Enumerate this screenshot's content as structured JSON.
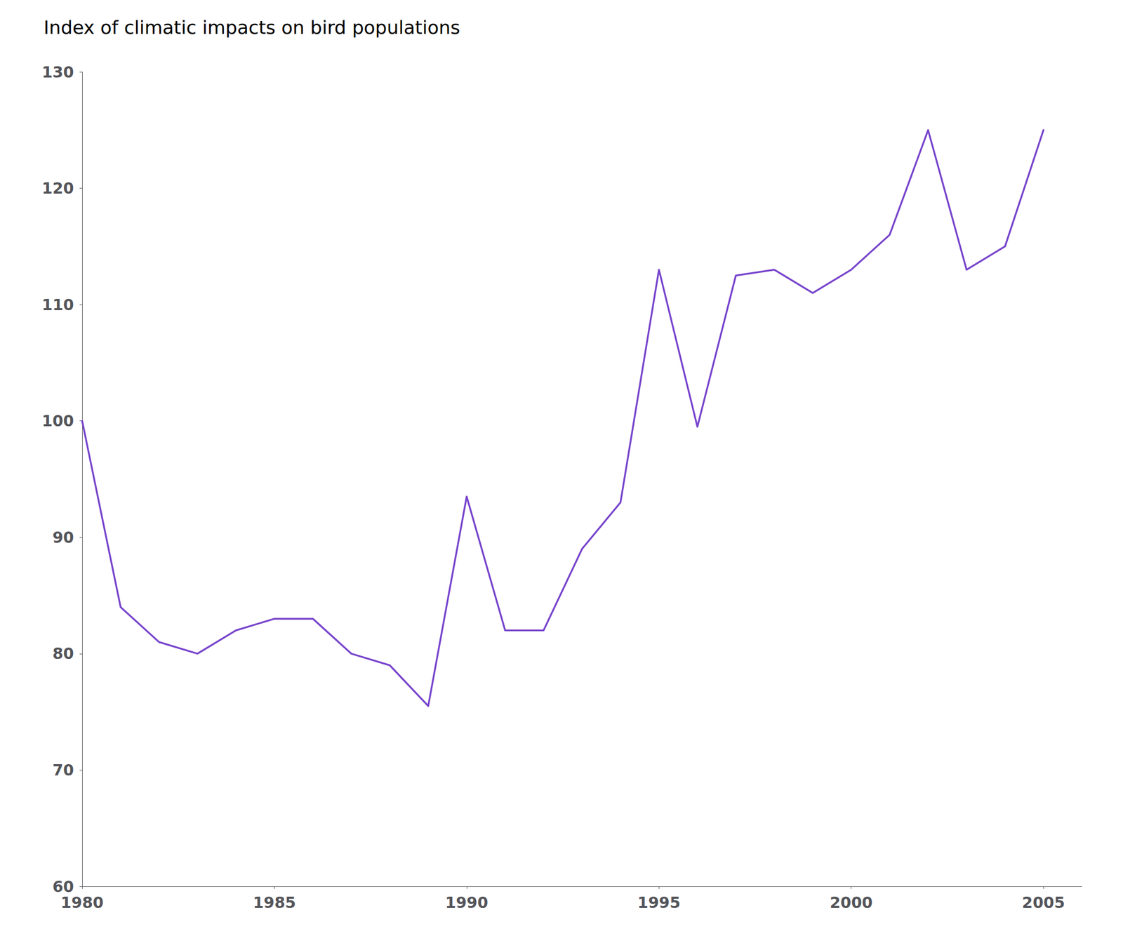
{
  "chart_data": {
    "type": "line",
    "title": "Index of climatic impacts on bird populations",
    "x": [
      1980,
      1981,
      1982,
      1983,
      1984,
      1985,
      1986,
      1987,
      1988,
      1989,
      1990,
      1991,
      1992,
      1993,
      1994,
      1995,
      1996,
      1997,
      1998,
      1999,
      2000,
      2001,
      2002,
      2003,
      2004,
      2005
    ],
    "values": [
      100,
      84,
      81,
      80,
      82,
      83,
      83,
      80,
      79,
      75.5,
      93.5,
      82,
      82,
      89,
      93,
      113,
      99.5,
      112.5,
      113,
      111,
      113,
      116,
      125,
      113,
      115,
      125
    ],
    "color": "#7744cc",
    "xlim": [
      1980,
      2006
    ],
    "ylim": [
      60,
      130
    ],
    "xticks": [
      1980,
      1985,
      1990,
      1995,
      2000,
      2005
    ],
    "yticks": [
      60,
      70,
      80,
      90,
      100,
      110,
      120,
      130
    ],
    "grid": false
  }
}
